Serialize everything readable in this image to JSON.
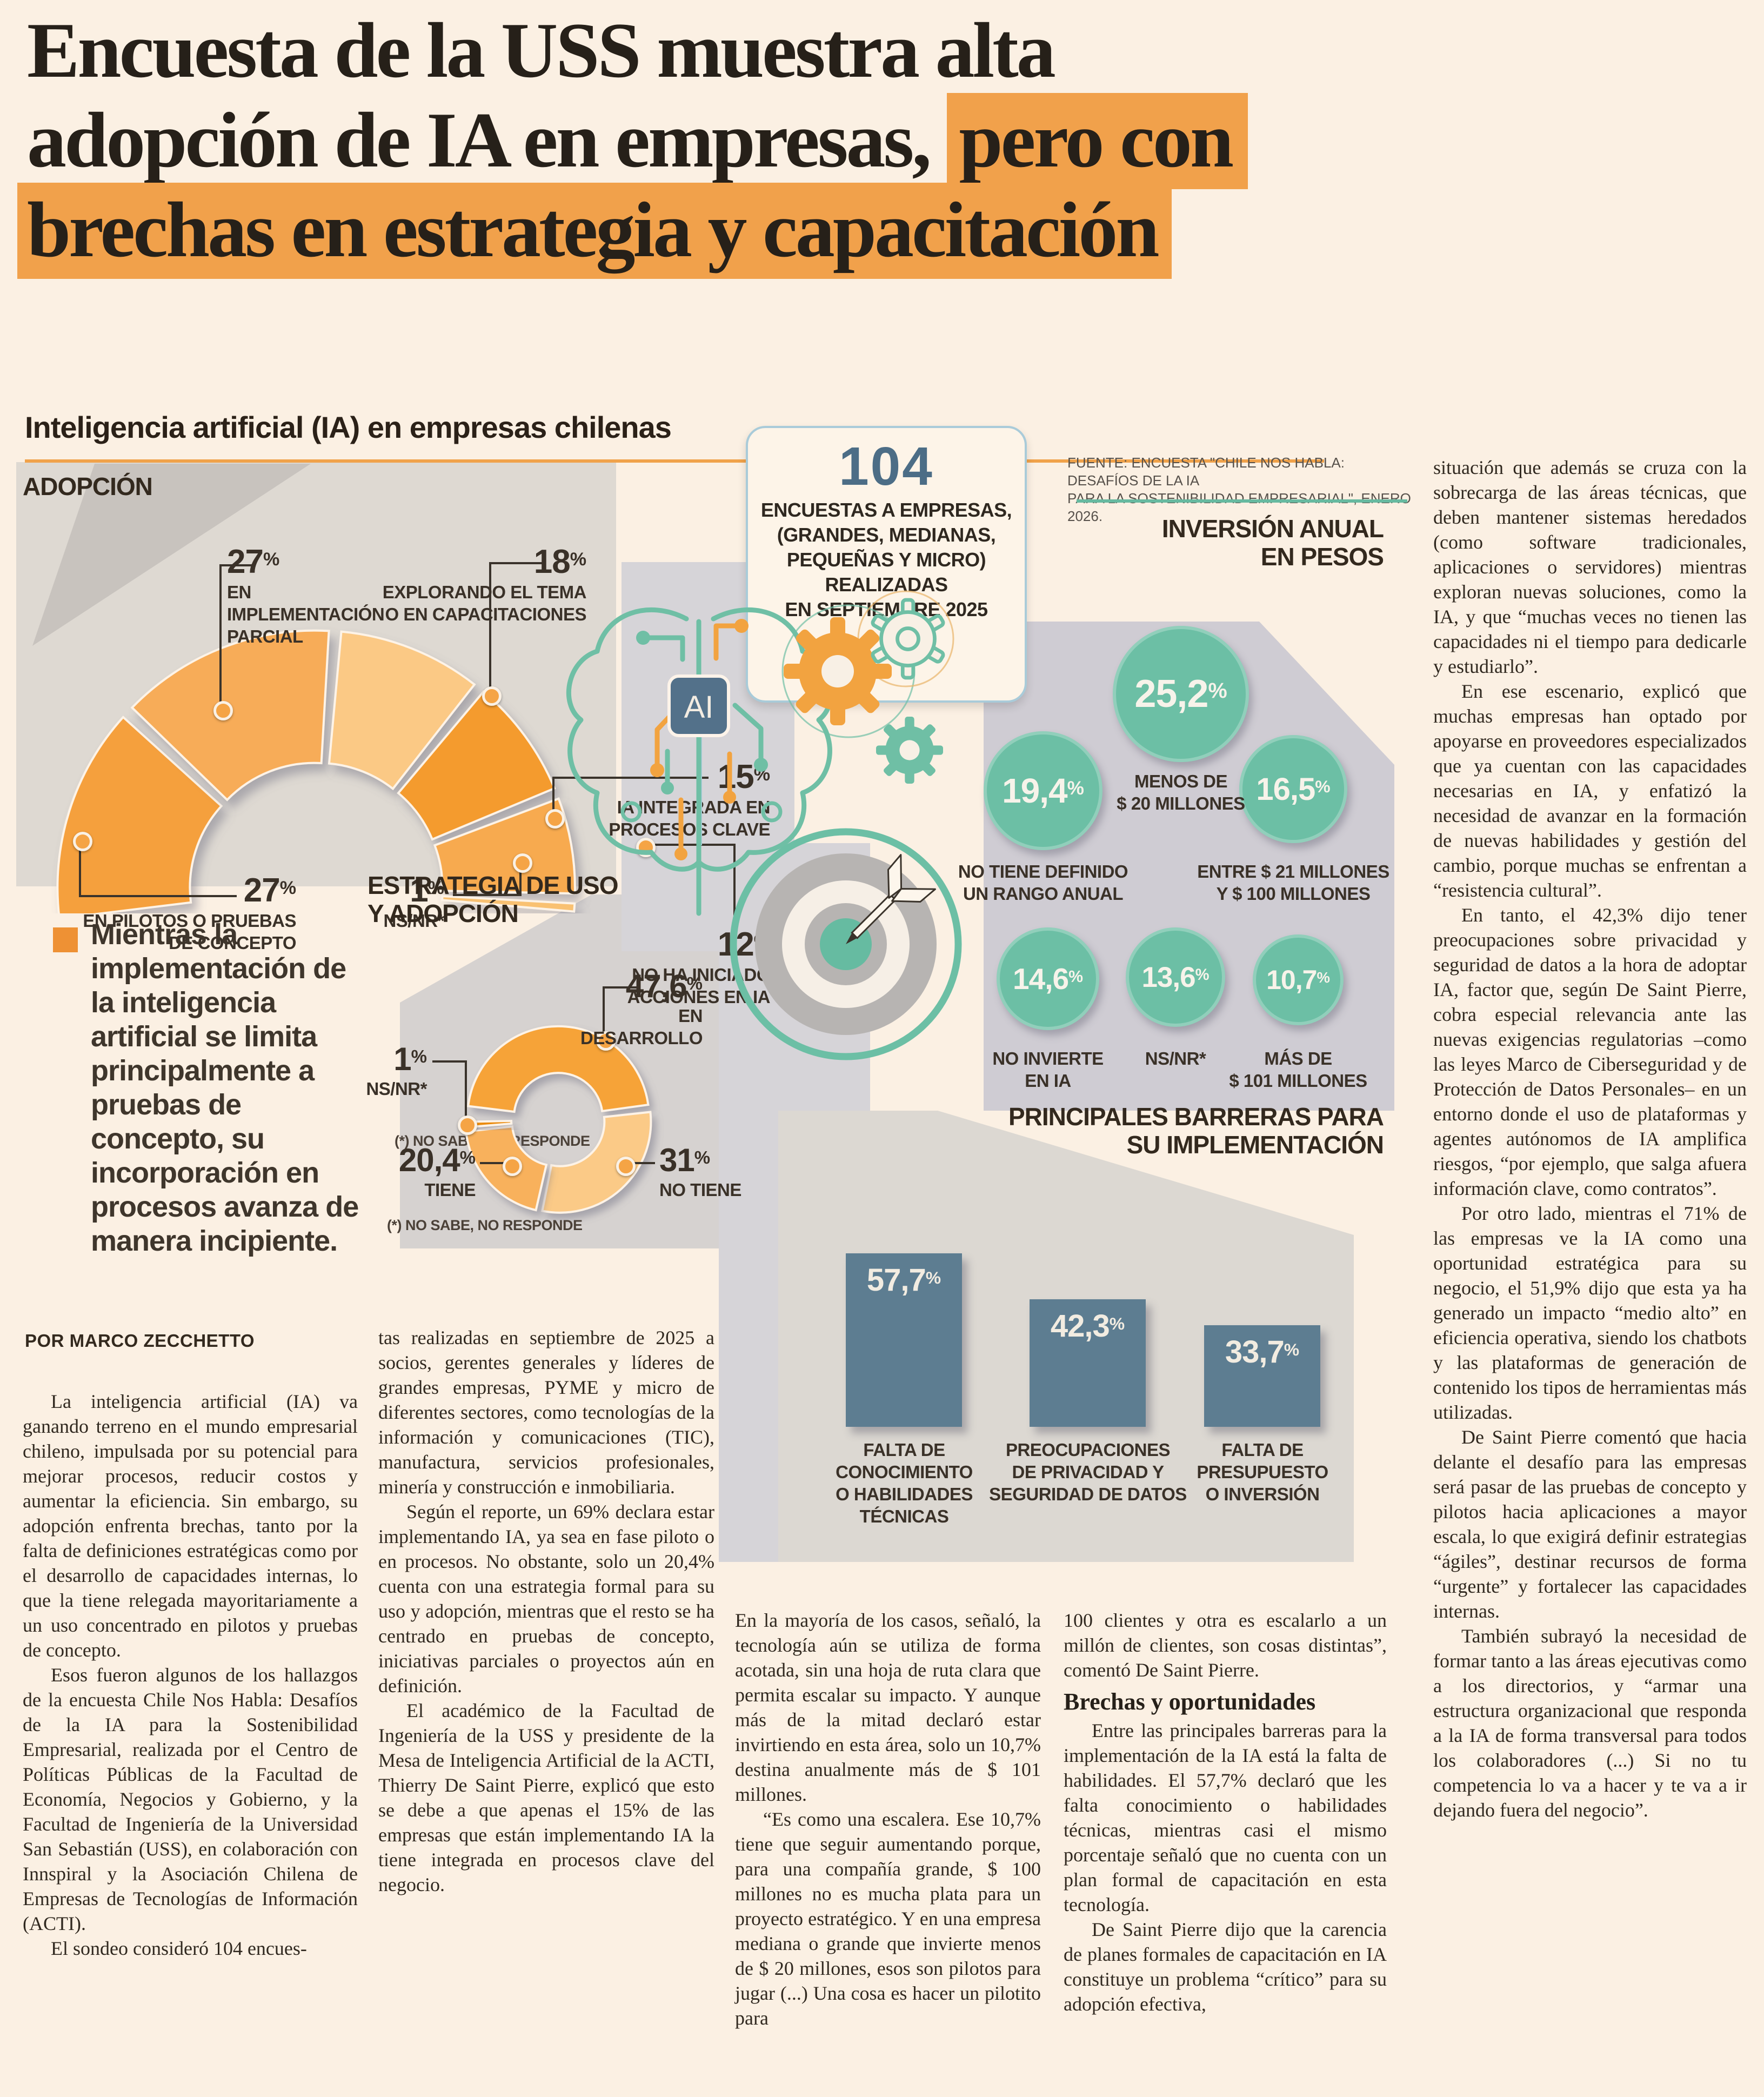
{
  "percent_sign": "%",
  "headline": {
    "line1": "Encuesta de la USS muestra alta",
    "line2_plain": "adopción de IA en empresas, ",
    "line2_highlight": "pero con",
    "line3_highlight": "brechas en estrategia y capacitación",
    "highlight_color": "#f1a14b"
  },
  "infographic": {
    "title": "Inteligencia artificial (IA) en empresas chilenas",
    "source_line1": "FUENTE: ENCUESTA \"CHILE NOS HABLA: DESAFÍOS DE LA IA",
    "source_line2": "PARA LA SOSTENIBILIDAD EMPRESARIAL\", ENERO 2026.",
    "footnote": "(*) NO SABE, NO RESPONDE",
    "ai_chip_label": "AI",
    "survey_box": {
      "number": "104",
      "line1": "ENCUESTAS A EMPRESAS,",
      "line2": "(GRANDES, MEDIANAS,",
      "line3": "PEQUEÑAS Y MICRO) REALIZADAS",
      "line4": "EN SEPTIEMBRE 2025"
    }
  },
  "chart_data": [
    {
      "type": "gauge",
      "title": "ADOPCIÓN",
      "unit": "%",
      "footnote": "(*) NO SABE, NO RESPONDE",
      "segments": [
        {
          "value": 27,
          "display": "27",
          "color": "#f5a03c",
          "lines": [
            "EN PILOTOS O PRUEBAS",
            "DE CONCEPTO"
          ]
        },
        {
          "value": 27,
          "display": "27",
          "color": "#f7ac58",
          "lines": [
            "EN",
            "IMPLEMENTACIÓN",
            "PARCIAL"
          ]
        },
        {
          "value": 18,
          "display": "18",
          "color": "#fbc985",
          "lines": [
            "EXPLORANDO EL TEMA",
            "O EN CAPACITACIONES"
          ]
        },
        {
          "value": 15,
          "display": "15",
          "color": "#f49b2f",
          "lines": [
            "IA INTEGRADA EN",
            "PROCESOS CLAVE"
          ]
        },
        {
          "value": 12,
          "display": "12",
          "color": "#f7aa50",
          "lines": [
            "NO HA INICIADO",
            "ACCIONES EN IA"
          ]
        },
        {
          "value": 1,
          "display": "1",
          "color": "#f9c172",
          "lines": [
            "NS/NR*"
          ]
        }
      ]
    },
    {
      "type": "circles",
      "title_lines": [
        "INVERSIÓN ANUAL",
        "EN PESOS"
      ],
      "unit": "%",
      "color": "#6cbfa5",
      "items": [
        {
          "value": 25.2,
          "display": "25,2",
          "lines": [
            "MENOS DE",
            "$ 20 MILLONES"
          ]
        },
        {
          "value": 19.4,
          "display": "19,4",
          "lines": [
            "NO TIENE DEFINIDO",
            "UN RANGO ANUAL"
          ]
        },
        {
          "value": 16.5,
          "display": "16,5",
          "lines": [
            "ENTRE $ 21 MILLONES",
            "Y $ 100 MILLONES"
          ]
        },
        {
          "value": 14.6,
          "display": "14,6",
          "lines": [
            "NO INVIERTE",
            "EN IA"
          ]
        },
        {
          "value": 13.6,
          "display": "13,6",
          "lines": [
            "NS/NR*"
          ]
        },
        {
          "value": 10.7,
          "display": "10,7",
          "lines": [
            "MÁS DE",
            "$ 101 MILLONES"
          ]
        }
      ]
    },
    {
      "type": "donut",
      "title_lines": [
        "ESTRATEGIA DE USO",
        "Y ADOPCIÓN"
      ],
      "unit": "%",
      "footnote": "(*) NO SABE, NO RESPONDE",
      "segments": [
        {
          "value": 47.6,
          "display": "47,6",
          "color": "#f6a339",
          "lines": [
            "EN",
            "DESARROLLO"
          ]
        },
        {
          "value": 31,
          "display": "31",
          "color": "#fbca87",
          "lines": [
            "NO TIENE"
          ]
        },
        {
          "value": 20.4,
          "display": "20,4",
          "color": "#f8b15c",
          "lines": [
            "TIENE"
          ]
        },
        {
          "value": 1,
          "display": "1",
          "color": "#ea8b10",
          "lines": [
            "NS/NR*"
          ]
        }
      ]
    },
    {
      "type": "bar",
      "title_lines": [
        "PRINCIPALES BARRERAS PARA",
        "SU IMPLEMENTACIÓN"
      ],
      "unit": "%",
      "bar_color": "#5d7d91",
      "values": [
        57.7,
        42.3,
        33.7
      ],
      "values_display": [
        "57,7",
        "42,3",
        "33,7"
      ],
      "category_lines": [
        [
          "FALTA DE CONOCIMIENTO",
          "O HABILIDADES TÉCNICAS"
        ],
        [
          "PREOCUPACIONES",
          "DE PRIVACIDAD Y",
          "SEGURIDAD DE DATOS"
        ],
        [
          "FALTA DE",
          "PRESUPUESTO",
          "O INVERSIÓN"
        ]
      ]
    }
  ],
  "quote": {
    "text": "Mientras la implementación de la inteligencia artificial se limita principalmente a pruebas de concepto, su incorporación en procesos avanza de manera incipiente."
  },
  "byline": "POR MARCO ZECCHETTO",
  "article": {
    "col1": [
      "La inteligencia artificial (IA) va ganando terreno en el mundo empresarial chileno, impulsada por su potencial para mejorar procesos, reducir costos y aumentar la eficiencia. Sin embargo, su adopción enfrenta brechas, tanto por la falta de definiciones estratégicas como por el desarrollo de capacidades internas, lo que la tiene relegada mayoritariamente a un uso concentrado en pilotos y pruebas de concepto.",
      "Esos fueron algunos de los hallazgos de la encuesta Chile Nos Habla: Desafíos de la IA para la Sostenibilidad Empresarial, realizada por el Centro de Políticas Públicas de la Facultad de Economía, Negocios y Gobierno, y la Facultad de Ingeniería de la Universidad San Sebastián (USS), en colaboración con Innspiral y la Asociación Chilena de Empresas de Tecnologías de Información (ACTI).",
      "El sondeo consideró 104 encues-"
    ],
    "col2": [
      "tas realizadas en septiembre de 2025 a socios, gerentes generales y líderes de grandes empresas, PYME y micro de diferentes sectores, como tecnologías de la información y comunicaciones (TIC), manufactura, servicios profesionales, minería y construcción e inmobiliaria.",
      "Según el reporte, un 69% declara estar implementando IA, ya sea en fase piloto o en procesos. No obstante, solo un 20,4% cuenta con una estrategia formal para su uso y adopción, mientras que el resto se ha centrado en pruebas de concepto, iniciativas parciales o proyectos aún en definición.",
      "El académico de la Facultad de Ingeniería de la USS y presidente de la Mesa de Inteligencia Artificial de la ACTI, Thierry De Saint Pierre, explicó que esto se debe a que apenas el 15% de las empresas que están implementando IA la tiene integrada en procesos clave del negocio."
    ],
    "col3": [
      "En la mayoría de los casos, señaló, la tecnología aún se utiliza de forma acotada, sin una hoja de ruta clara que permita escalar su impacto. Y aunque más de la mitad declaró estar invirtiendo en esta área, solo un 10,7% destina anualmente más de $ 101 millones.",
      "“Es como una escalera. Ese 10,7% tiene que seguir aumentando porque, para una compañía grande, $ 100 millones no es mucha plata para un proyecto estratégico. Y en una empresa mediana o grande que invierte menos de $ 20 millones, esos son pilotos para jugar (...) Una cosa es hacer un pilotito para"
    ],
    "col4": [
      "100 clientes y otra es escalarlo a un millón de clientes, son cosas distintas”, comentó De Saint Pierre.",
      {
        "h": "Brechas y oportunidades"
      },
      "Entre las principales barreras para la implementación de la IA está la falta de habilidades. El 57,7% declaró que les falta conocimiento o habilidades técnicas, mientras casi el mismo porcentaje señaló que no cuenta con un plan formal de capacitación en esta tecnología.",
      "De Saint Pierre dijo que la carencia de planes formales de capacitación en IA constituye un problema “crítico” para su adopción efectiva,"
    ],
    "col5": [
      "situación que además se cruza con la sobrecarga de las áreas técnicas, que deben mantener sistemas heredados (como software tradicionales, aplicaciones o servidores) mientras exploran nuevas soluciones, como la IA, y que “muchas veces no tienen las capacidades ni el tiempo para dedicarle y estudiarlo”.",
      "En ese escenario, explicó que muchas empresas han optado por apoyarse en proveedores especializados que ya cuentan con las capacidades necesarias en IA, y enfatizó la necesidad de avanzar en la formación de nuevas habilidades y gestión del cambio, porque muchas se enfrentan a “resistencia cultural”.",
      "En tanto, el 42,3% dijo tener preocupaciones sobre privacidad y seguridad de datos a la hora de adoptar IA, factor que, según De Saint Pierre, cobra especial relevancia ante las nuevas exigencias regulatorias –como las leyes Marco de Ciberseguridad y de Protección de Datos Personales– en un entorno donde el uso de plataformas y agentes autónomos de IA amplifica riesgos, “por ejemplo, que salga afuera información clave, como contratos”.",
      "Por otro lado, mientras el 71% de las empresas ve la IA como una oportunidad estratégica para su negocio, el 51,9% dijo que esta ya ha generado un impacto “medio alto” en eficiencia operativa, siendo los chatbots y las plataformas de generación de contenido los tipos de herramientas más utilizadas.",
      "De Saint Pierre comentó que hacia delante el desafío para las empresas será pasar de las pruebas de concepto y pilotos hacia aplicaciones a mayor escala, lo que exigirá definir estrategias “ágiles”, destinar recursos de forma “urgente” y fortalecer las capacidades internas.",
      "También subrayó la necesidad de formar tanto a las áreas ejecutivas como a los directorios, y “armar una estructura organizacional que responda a la IA de forma transversal para todos los colaboradores (...) Si no tu competencia lo va a hacer y te va a ir dejando fuera del negocio”."
    ]
  }
}
